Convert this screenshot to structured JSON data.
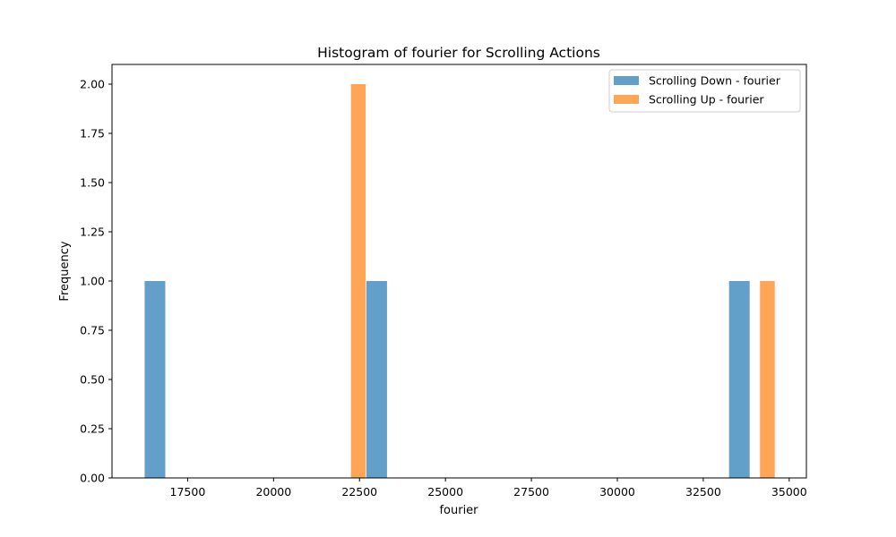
{
  "chart_data": {
    "type": "bar",
    "title": "Histogram of fourier for Scrolling Actions",
    "xlabel": "fourier",
    "ylabel": "Frequency",
    "xlim": [
      15300,
      35500
    ],
    "ylim": [
      0,
      2.1
    ],
    "xticks": [
      17500,
      20000,
      22500,
      25000,
      27500,
      30000,
      32500,
      35000
    ],
    "xtick_labels": [
      "17500",
      "20000",
      "22500",
      "25000",
      "27500",
      "30000",
      "32500",
      "35000"
    ],
    "yticks": [
      0,
      0.25,
      0.5,
      0.75,
      1.0,
      1.25,
      1.5,
      1.75,
      2.0
    ],
    "ytick_labels": [
      "0.00",
      "0.25",
      "0.50",
      "0.75",
      "1.00",
      "1.25",
      "1.50",
      "1.75",
      "2.00"
    ],
    "grid": false,
    "legend_position": "top-right",
    "series": [
      {
        "name": "Scrolling Down - fourier",
        "color": "#1f77b4",
        "opacity": 0.7,
        "bins": [
          {
            "start": 16250,
            "end": 16850,
            "count": 1
          },
          {
            "start": 22700,
            "end": 23300,
            "count": 1
          },
          {
            "start": 33250,
            "end": 33850,
            "count": 1
          }
        ]
      },
      {
        "name": "Scrolling Up - fourier",
        "color": "#ff7f0e",
        "opacity": 0.7,
        "bins": [
          {
            "start": 22250,
            "end": 22680,
            "count": 2
          },
          {
            "start": 34150,
            "end": 34580,
            "count": 1
          }
        ]
      }
    ]
  }
}
